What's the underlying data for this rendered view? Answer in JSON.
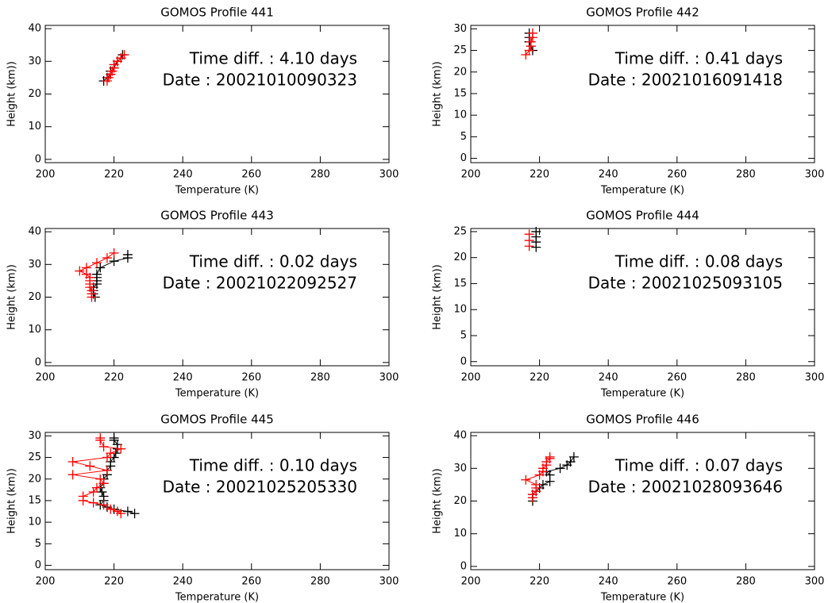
{
  "chart_data": [
    {
      "type": "line",
      "title": "GOMOS Profile 441",
      "xlabel": "Temperature (K)",
      "ylabel": "Height (km))",
      "annotations": [
        "Time diff. : 4.10 days",
        "Date : 20021010090323"
      ],
      "xlim": [
        200,
        300
      ],
      "xticks": [
        200,
        220,
        240,
        260,
        280,
        300
      ],
      "ylim": [
        -1,
        41
      ],
      "yticks": [
        0,
        10,
        20,
        30,
        40
      ],
      "series": [
        {
          "color": "#000000",
          "x": [
            217,
            218,
            219,
            219,
            220,
            221,
            222,
            222.5
          ],
          "values": [
            24,
            25,
            26,
            27,
            28,
            30,
            31,
            32
          ]
        },
        {
          "color": "#ff0000",
          "x": [
            218,
            218.5,
            219,
            219.5,
            220,
            220,
            221,
            222,
            223
          ],
          "values": [
            24,
            25,
            26,
            27,
            28,
            29,
            30,
            31,
            32
          ]
        }
      ]
    },
    {
      "type": "line",
      "title": "GOMOS Profile 442",
      "xlabel": "Temperature (K)",
      "ylabel": "Height (km))",
      "annotations": [
        "Time diff. : 0.41 days",
        "Date : 20021016091418"
      ],
      "xlim": [
        200,
        300
      ],
      "xticks": [
        200,
        220,
        240,
        260,
        280,
        300
      ],
      "ylim": [
        -1,
        30.8
      ],
      "yticks": [
        0,
        5,
        10,
        15,
        20,
        25,
        30
      ],
      "series": [
        {
          "color": "#000000",
          "x": [
            217,
            217,
            217,
            217.5,
            218
          ],
          "values": [
            29,
            28,
            27,
            26,
            25
          ]
        },
        {
          "color": "#ff0000",
          "x": [
            216,
            217,
            217.5,
            217.5,
            218,
            218
          ],
          "values": [
            24,
            25,
            26,
            27,
            28,
            29
          ]
        }
      ]
    },
    {
      "type": "line",
      "title": "GOMOS Profile 443",
      "xlabel": "Temperature (K)",
      "ylabel": "Height (km))",
      "annotations": [
        "Time diff. : 0.02 days",
        "Date : 20021022092527"
      ],
      "xlim": [
        200,
        300
      ],
      "xticks": [
        200,
        220,
        240,
        260,
        280,
        300
      ],
      "ylim": [
        -1,
        41
      ],
      "yticks": [
        0,
        10,
        20,
        30,
        40
      ],
      "series": [
        {
          "color": "#000000",
          "x": [
            224,
            224,
            220,
            216,
            215,
            215,
            215,
            215,
            214,
            214,
            214,
            214.5
          ],
          "values": [
            33,
            32,
            31,
            29,
            27,
            26,
            25,
            24,
            23,
            22,
            21,
            20
          ]
        },
        {
          "color": "#ff0000",
          "x": [
            220,
            218,
            215,
            212,
            210,
            212,
            213,
            213,
            213,
            213,
            213.5,
            213.5,
            213.5
          ],
          "values": [
            33.5,
            32,
            30.5,
            29,
            28,
            27,
            26,
            25,
            24,
            23,
            22,
            21,
            20
          ]
        }
      ]
    },
    {
      "type": "line",
      "title": "GOMOS Profile 444",
      "xlabel": "Temperature (K)",
      "ylabel": "Height (km))",
      "annotations": [
        "Time diff. : 0.08 days",
        "Date : 20021025093105"
      ],
      "xlim": [
        200,
        300
      ],
      "xticks": [
        200,
        220,
        240,
        260,
        280,
        300
      ],
      "ylim": [
        -0.8,
        25.6
      ],
      "yticks": [
        0,
        5,
        10,
        15,
        20,
        25
      ],
      "series": [
        {
          "color": "#000000",
          "x": [
            219,
            219,
            219,
            219
          ],
          "values": [
            25,
            24,
            23,
            22
          ]
        },
        {
          "color": "#ff0000",
          "x": [
            217,
            217,
            217
          ],
          "values": [
            24.5,
            23.3,
            22.2
          ]
        }
      ]
    },
    {
      "type": "line",
      "title": "GOMOS Profile 445",
      "xlabel": "Temperature (K)",
      "ylabel": "Height (km))",
      "annotations": [
        "Time diff. : 0.10 days",
        "Date : 20021025205330"
      ],
      "xlim": [
        200,
        300
      ],
      "xticks": [
        200,
        220,
        240,
        260,
        280,
        300
      ],
      "ylim": [
        -1,
        30.8
      ],
      "yticks": [
        0,
        5,
        10,
        15,
        20,
        25,
        30
      ],
      "series": [
        {
          "color": "#000000",
          "x": [
            220,
            220,
            221,
            221,
            220.5,
            220,
            219,
            219,
            218,
            218,
            217,
            217,
            216,
            216.5,
            217,
            217,
            216,
            218,
            220,
            224,
            226
          ],
          "values": [
            29.5,
            29,
            28,
            27,
            26,
            25,
            24,
            23,
            22,
            21,
            20,
            19,
            18,
            17,
            16,
            15,
            14,
            13.5,
            13,
            12.5,
            12
          ]
        },
        {
          "color": "#ff0000",
          "x": [
            216,
            216,
            217,
            222,
            219,
            218,
            208,
            213,
            218,
            208,
            216,
            217,
            215,
            214,
            211,
            211,
            214,
            217,
            219,
            221,
            222
          ],
          "values": [
            29.5,
            29,
            27.5,
            27,
            26,
            25,
            24,
            23,
            22,
            21,
            20,
            19,
            18,
            17,
            16,
            15,
            14.5,
            14,
            13,
            12.5,
            12
          ]
        }
      ]
    },
    {
      "type": "line",
      "title": "GOMOS Profile 446",
      "xlabel": "Temperature (K)",
      "ylabel": "Height (km))",
      "annotations": [
        "Time diff. : 0.07 days",
        "Date : 20021028093646"
      ],
      "xlim": [
        200,
        300
      ],
      "xticks": [
        200,
        220,
        240,
        260,
        280,
        300
      ],
      "ylim": [
        -1,
        41
      ],
      "yticks": [
        0,
        10,
        20,
        30,
        40
      ],
      "series": [
        {
          "color": "#000000",
          "x": [
            218,
            218,
            218,
            219,
            220,
            221,
            223,
            223,
            222,
            226,
            228,
            229,
            230
          ],
          "values": [
            20,
            21,
            22,
            23,
            24,
            25,
            26,
            28,
            29,
            30,
            31,
            32,
            33.5
          ]
        },
        {
          "color": "#ff0000",
          "x": [
            218,
            218,
            219,
            219,
            219,
            216,
            220,
            221,
            221,
            222,
            222,
            223,
            223
          ],
          "values": [
            21,
            22,
            23,
            24,
            25,
            26.5,
            28,
            29,
            30,
            31,
            32,
            33,
            33.5
          ]
        }
      ]
    }
  ]
}
